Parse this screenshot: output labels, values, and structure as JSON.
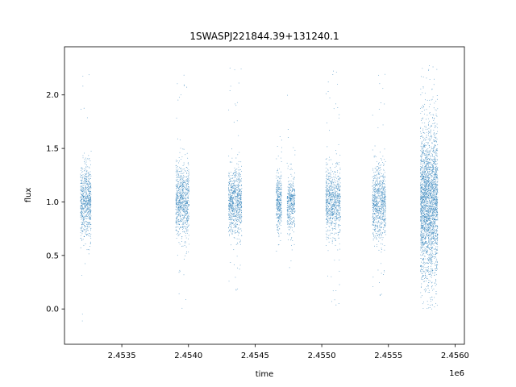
{
  "chart_data": {
    "type": "scatter",
    "title": "1SWASPJ221844.39+131240.1",
    "xlabel": "time",
    "ylabel": "flux",
    "x_offset_label": "1e6",
    "xlim": [
      2453070,
      2456070
    ],
    "ylim": [
      -0.33,
      2.45
    ],
    "xticks": [
      {
        "value": 2453500,
        "label": "2.4535"
      },
      {
        "value": 2454000,
        "label": "2.4540"
      },
      {
        "value": 2454500,
        "label": "2.4545"
      },
      {
        "value": 2455000,
        "label": "2.4550"
      },
      {
        "value": 2455500,
        "label": "2.4555"
      },
      {
        "value": 2456000,
        "label": "2.4560"
      }
    ],
    "yticks": [
      {
        "value": 0.0,
        "label": "0.0"
      },
      {
        "value": 0.5,
        "label": "0.5"
      },
      {
        "value": 1.0,
        "label": "1.0"
      },
      {
        "value": 1.5,
        "label": "1.5"
      },
      {
        "value": 2.0,
        "label": "2.0"
      }
    ],
    "grid": false,
    "marker_color": "#1f77b4",
    "observing_seasons": [
      {
        "x_start": 2453190,
        "x_end": 2453270,
        "center": 1.0,
        "spread": 0.17,
        "count": 700,
        "min": -0.2,
        "max": 2.25
      },
      {
        "x_start": 2453905,
        "x_end": 2454005,
        "center": 1.0,
        "spread": 0.17,
        "count": 800,
        "min": 0.0,
        "max": 2.3
      },
      {
        "x_start": 2454300,
        "x_end": 2454400,
        "center": 1.0,
        "spread": 0.15,
        "count": 800,
        "min": 0.15,
        "max": 2.3
      },
      {
        "x_start": 2454660,
        "x_end": 2454700,
        "center": 1.0,
        "spread": 0.13,
        "count": 350,
        "min": 0.45,
        "max": 1.75
      },
      {
        "x_start": 2454740,
        "x_end": 2454800,
        "center": 1.0,
        "spread": 0.13,
        "count": 400,
        "min": 0.25,
        "max": 2.1
      },
      {
        "x_start": 2455030,
        "x_end": 2455140,
        "center": 1.0,
        "spread": 0.16,
        "count": 800,
        "min": 0.0,
        "max": 2.25
      },
      {
        "x_start": 2455380,
        "x_end": 2455480,
        "center": 1.0,
        "spread": 0.17,
        "count": 800,
        "min": 0.1,
        "max": 2.25
      },
      {
        "x_start": 2455740,
        "x_end": 2455870,
        "center": 1.0,
        "spread": 0.35,
        "count": 2500,
        "min": 0.0,
        "max": 2.3
      }
    ]
  }
}
